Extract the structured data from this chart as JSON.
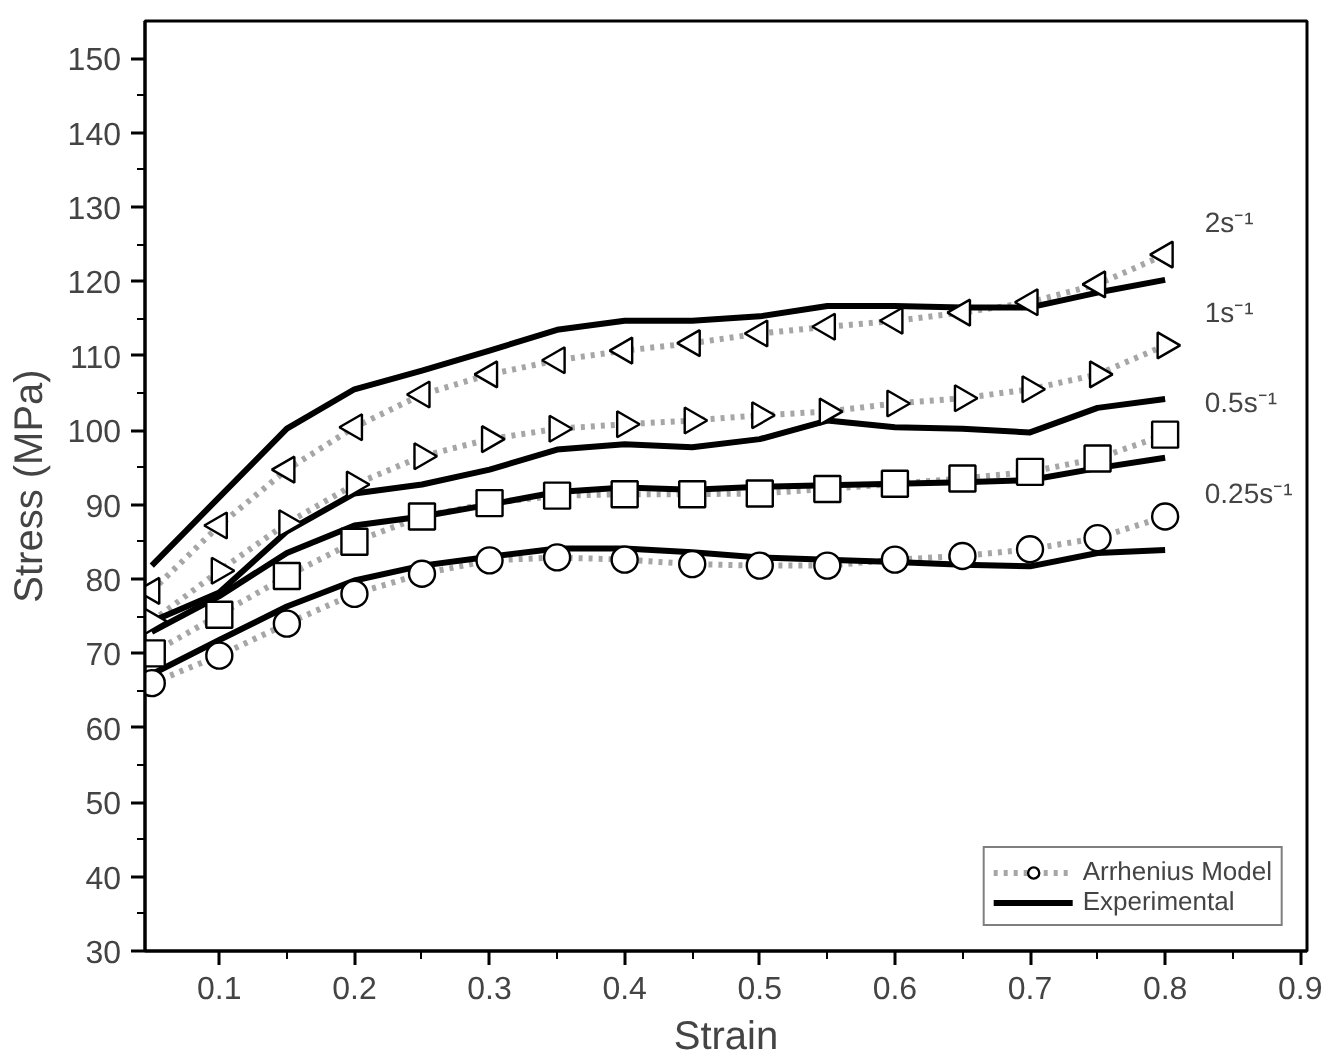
{
  "chart_data": {
    "type": "line",
    "xlabel": "Strain",
    "ylabel": "Stress (MPa)",
    "x": [
      0.05,
      0.1,
      0.15,
      0.2,
      0.25,
      0.3,
      0.35,
      0.4,
      0.45,
      0.5,
      0.55,
      0.6,
      0.65,
      0.7,
      0.75,
      0.8
    ],
    "xlim": [
      0.045,
      0.905
    ],
    "ylim": [
      30,
      155
    ],
    "xticks": [
      0.1,
      0.2,
      0.3,
      0.4,
      0.5,
      0.6,
      0.7,
      0.8,
      0.9
    ],
    "yticks": [
      30,
      40,
      50,
      60,
      70,
      80,
      90,
      100,
      110,
      120,
      130,
      140,
      150
    ],
    "grid": false,
    "legend": "bottom right",
    "series": [
      {
        "name": "Arrhenius Model",
        "color": "#000000",
        "marker": "circle",
        "line_style": "dotted",
        "values": [
          66,
          69.7,
          74,
          78,
          80.7,
          82.5,
          82.9,
          82.6,
          82,
          81.8,
          81.8,
          82.6,
          83.1,
          84,
          85.5,
          88.4
        ]
      },
      {
        "color": "#000000",
        "marker": "square",
        "line_style": "dotted",
        "values": [
          70,
          75.2,
          80.4,
          85,
          88.4,
          90.2,
          91.2,
          91.4,
          91.4,
          91.5,
          92.1,
          92.8,
          93.5,
          94.4,
          96.2,
          99.4
        ]
      },
      {
        "color": "#000000",
        "marker": "triangle_right",
        "line_style": "dotted",
        "values": [
          74.3,
          81.1,
          87.5,
          92.7,
          96.5,
          98.8,
          100.2,
          100.8,
          101.3,
          102,
          102.5,
          103.6,
          104.3,
          105.5,
          107.5,
          111.4
        ]
      },
      {
        "color": "#000000",
        "marker": "triangle_left",
        "line_style": "dotted",
        "values": [
          78.4,
          87.2,
          94.7,
          100.4,
          104.8,
          107.5,
          109.4,
          110.7,
          111.7,
          113,
          113.9,
          114.7,
          115.8,
          117.2,
          119.6,
          123.6
        ]
      },
      {
        "name": "Experimental",
        "color": "#000000",
        "marker": "none",
        "line_style": "solid",
        "values": [
          67.2,
          71.8,
          76.3,
          79.8,
          81.8,
          83,
          84.1,
          84.1,
          83.6,
          82.9,
          82.6,
          82.3,
          81.9,
          81.7,
          83.5,
          83.9
        ]
      },
      {
        "color": "#000000",
        "marker": "none",
        "line_style": "solid",
        "values": [
          72.9,
          77.7,
          83.5,
          87.2,
          88.4,
          90,
          91.7,
          92.3,
          92,
          92.4,
          92.6,
          92.8,
          93,
          93.3,
          94.9,
          96.3
        ]
      },
      {
        "color": "#000000",
        "marker": "none",
        "line_style": "solid",
        "values": [
          74.3,
          78.2,
          86.4,
          91.5,
          92.7,
          94.7,
          97.4,
          98.1,
          97.7,
          98.8,
          101.3,
          100.4,
          100.2,
          99.7,
          103,
          104.2
        ]
      },
      {
        "color": "#000000",
        "marker": "none",
        "line_style": "solid",
        "values": [
          81.8,
          91,
          100.2,
          105.5,
          108,
          110.7,
          113.5,
          114.7,
          114.7,
          115.3,
          116.7,
          116.7,
          116.5,
          116.5,
          118.5,
          120.2
        ]
      }
    ],
    "annotations": [
      "2s⁻¹",
      "1s⁻¹",
      "0.5s⁻¹",
      "0.25s⁻¹"
    ]
  }
}
